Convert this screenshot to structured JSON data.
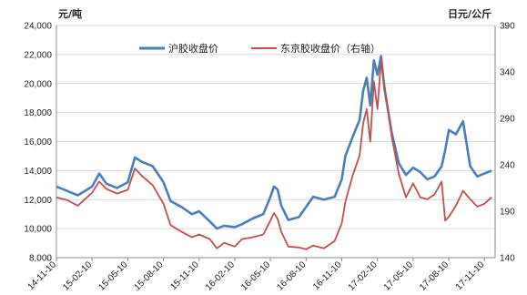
{
  "chart_data": {
    "type": "line",
    "left_unit": "元/吨",
    "right_unit": "日元/公斤",
    "y_left": {
      "min": 8000,
      "max": 24000,
      "step": 2000,
      "ticks": [
        "24,000",
        "22,000",
        "20,000",
        "18,000",
        "16,000",
        "14,000",
        "12,000",
        "10,000",
        "8,000"
      ]
    },
    "y_right": {
      "min": 140,
      "max": 390,
      "step": 50,
      "ticks": [
        "390",
        "340",
        "290",
        "240",
        "190",
        "140"
      ]
    },
    "x_ticks": [
      "14-11-10",
      "15-02-10",
      "15-05-10",
      "15-08-10",
      "15-11-10",
      "16-02-10",
      "16-05-10",
      "16-08-10",
      "16-11-10",
      "17-02-10",
      "17-05-10",
      "17-08-10",
      "17-11-10"
    ],
    "legend_position": "top",
    "grid": "horizontal",
    "series": [
      {
        "name": "沪胶收盘价",
        "axis": "left",
        "color": "#4a7ebb",
        "values": [
          [
            0,
            12900
          ],
          [
            0.3,
            12600
          ],
          [
            0.6,
            12300
          ],
          [
            1,
            12900
          ],
          [
            1.2,
            13800
          ],
          [
            1.4,
            13100
          ],
          [
            1.7,
            12800
          ],
          [
            2,
            13200
          ],
          [
            2.2,
            14900
          ],
          [
            2.4,
            14600
          ],
          [
            2.7,
            14300
          ],
          [
            3,
            13200
          ],
          [
            3.2,
            11900
          ],
          [
            3.5,
            11500
          ],
          [
            3.8,
            11000
          ],
          [
            4,
            11200
          ],
          [
            4.3,
            10500
          ],
          [
            4.5,
            10000
          ],
          [
            4.7,
            10200
          ],
          [
            5,
            10100
          ],
          [
            5.2,
            10300
          ],
          [
            5.5,
            10700
          ],
          [
            5.8,
            11000
          ],
          [
            6,
            12200
          ],
          [
            6.1,
            12900
          ],
          [
            6.2,
            12700
          ],
          [
            6.3,
            11600
          ],
          [
            6.5,
            10600
          ],
          [
            6.8,
            10800
          ],
          [
            7,
            11500
          ],
          [
            7.2,
            12200
          ],
          [
            7.5,
            12000
          ],
          [
            7.8,
            12200
          ],
          [
            8,
            13400
          ],
          [
            8.1,
            15000
          ],
          [
            8.3,
            16300
          ],
          [
            8.5,
            17500
          ],
          [
            8.6,
            19500
          ],
          [
            8.7,
            20400
          ],
          [
            8.8,
            18500
          ],
          [
            8.9,
            21600
          ],
          [
            9,
            20600
          ],
          [
            9.1,
            21900
          ],
          [
            9.2,
            19600
          ],
          [
            9.4,
            16600
          ],
          [
            9.6,
            14500
          ],
          [
            9.8,
            13700
          ],
          [
            10,
            14200
          ],
          [
            10.2,
            13900
          ],
          [
            10.4,
            13400
          ],
          [
            10.6,
            13600
          ],
          [
            10.8,
            14300
          ],
          [
            10.9,
            15400
          ],
          [
            11,
            16800
          ],
          [
            11.2,
            16500
          ],
          [
            11.4,
            17400
          ],
          [
            11.6,
            14300
          ],
          [
            11.8,
            13600
          ],
          [
            12,
            13800
          ],
          [
            12.2,
            14000
          ]
        ]
      },
      {
        "name": "东京胶收盘价（右轴）",
        "axis": "right",
        "color": "#c0504d",
        "values": [
          [
            0,
            205
          ],
          [
            0.3,
            202
          ],
          [
            0.6,
            196
          ],
          [
            1,
            210
          ],
          [
            1.2,
            222
          ],
          [
            1.4,
            214
          ],
          [
            1.7,
            209
          ],
          [
            2,
            213
          ],
          [
            2.2,
            236
          ],
          [
            2.4,
            228
          ],
          [
            2.7,
            218
          ],
          [
            3,
            198
          ],
          [
            3.2,
            175
          ],
          [
            3.5,
            168
          ],
          [
            3.8,
            162
          ],
          [
            4,
            165
          ],
          [
            4.3,
            160
          ],
          [
            4.5,
            150
          ],
          [
            4.7,
            156
          ],
          [
            5,
            152
          ],
          [
            5.2,
            160
          ],
          [
            5.5,
            162
          ],
          [
            5.8,
            165
          ],
          [
            6,
            180
          ],
          [
            6.1,
            188
          ],
          [
            6.2,
            182
          ],
          [
            6.3,
            168
          ],
          [
            6.5,
            152
          ],
          [
            6.8,
            151
          ],
          [
            7,
            149
          ],
          [
            7.2,
            153
          ],
          [
            7.5,
            150
          ],
          [
            7.8,
            158
          ],
          [
            8,
            177
          ],
          [
            8.1,
            200
          ],
          [
            8.3,
            228
          ],
          [
            8.5,
            250
          ],
          [
            8.6,
            285
          ],
          [
            8.7,
            300
          ],
          [
            8.8,
            265
          ],
          [
            8.9,
            330
          ],
          [
            9,
            300
          ],
          [
            9.1,
            352
          ],
          [
            9.2,
            325
          ],
          [
            9.4,
            270
          ],
          [
            9.6,
            230
          ],
          [
            9.8,
            205
          ],
          [
            10,
            220
          ],
          [
            10.2,
            205
          ],
          [
            10.4,
            203
          ],
          [
            10.6,
            208
          ],
          [
            10.8,
            222
          ],
          [
            10.9,
            180
          ],
          [
            11,
            184
          ],
          [
            11.2,
            196
          ],
          [
            11.4,
            212
          ],
          [
            11.6,
            203
          ],
          [
            11.8,
            195
          ],
          [
            12,
            198
          ],
          [
            12.2,
            205
          ]
        ]
      }
    ]
  }
}
